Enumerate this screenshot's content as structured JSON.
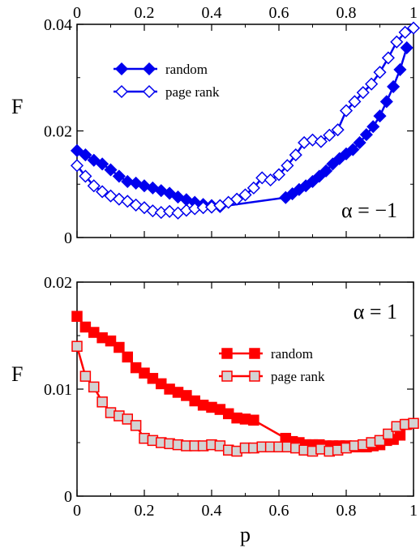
{
  "chart_data": [
    {
      "type": "line",
      "panel": "top",
      "ylabel": "F",
      "annotation": "α = −1",
      "xlim": [
        0,
        1
      ],
      "ylim": [
        0,
        0.04
      ],
      "x_ticks": [
        0,
        0.2,
        0.4,
        0.6,
        0.8,
        1
      ],
      "x_tick_labels": [
        "0",
        "0.2",
        "0.4",
        "0.6",
        "0.8",
        "1"
      ],
      "x_ticks_position": "top",
      "y_ticks": [
        0,
        0.02,
        0.04
      ],
      "y_tick_labels": [
        "0",
        "0.02",
        "0.04"
      ],
      "color": "#0000ee",
      "marker": "diamond",
      "legend_position": "top-left",
      "series": [
        {
          "name": "random",
          "filled": true,
          "x": [
            0.0,
            0.025,
            0.05,
            0.075,
            0.1,
            0.125,
            0.15,
            0.175,
            0.2,
            0.225,
            0.25,
            0.275,
            0.3,
            0.325,
            0.35,
            0.375,
            0.4,
            0.425,
            0.62,
            0.64,
            0.66,
            0.68,
            0.7,
            0.72,
            0.74,
            0.76,
            0.78,
            0.8,
            0.82,
            0.84,
            0.86,
            0.88,
            0.9,
            0.92,
            0.94,
            0.96,
            0.98
          ],
          "y": [
            0.0163,
            0.0155,
            0.0145,
            0.0138,
            0.0127,
            0.0115,
            0.0105,
            0.0102,
            0.0097,
            0.0093,
            0.0088,
            0.0083,
            0.0076,
            0.0071,
            0.0066,
            0.0062,
            0.006,
            0.0058,
            0.0075,
            0.0082,
            0.009,
            0.0097,
            0.0105,
            0.0115,
            0.0125,
            0.0138,
            0.0148,
            0.0157,
            0.0165,
            0.0178,
            0.0193,
            0.0208,
            0.0228,
            0.0255,
            0.0283,
            0.0315,
            0.0356
          ]
        },
        {
          "name": "page rank",
          "filled": false,
          "x": [
            0.0,
            0.025,
            0.05,
            0.075,
            0.1,
            0.125,
            0.15,
            0.175,
            0.2,
            0.225,
            0.25,
            0.275,
            0.3,
            0.325,
            0.35,
            0.375,
            0.4,
            0.425,
            0.45,
            0.475,
            0.5,
            0.525,
            0.55,
            0.575,
            0.6,
            0.625,
            0.65,
            0.675,
            0.7,
            0.725,
            0.75,
            0.775,
            0.8,
            0.825,
            0.85,
            0.875,
            0.9,
            0.925,
            0.95,
            0.975,
            1.0
          ],
          "y": [
            0.0135,
            0.0115,
            0.0097,
            0.0086,
            0.0078,
            0.0072,
            0.0068,
            0.0061,
            0.0056,
            0.005,
            0.0047,
            0.0049,
            0.0046,
            0.0051,
            0.0054,
            0.0056,
            0.0057,
            0.006,
            0.0066,
            0.0072,
            0.008,
            0.0093,
            0.0112,
            0.0108,
            0.0118,
            0.0135,
            0.0155,
            0.0178,
            0.0183,
            0.018,
            0.0192,
            0.0202,
            0.0238,
            0.0255,
            0.0272,
            0.0288,
            0.031,
            0.0337,
            0.0367,
            0.0385,
            0.0393
          ]
        }
      ]
    },
    {
      "type": "line",
      "panel": "bottom",
      "xlabel": "p",
      "ylabel": "F",
      "annotation": "α = 1",
      "xlim": [
        0,
        1
      ],
      "ylim": [
        0,
        0.02
      ],
      "x_ticks": [
        0,
        0.2,
        0.4,
        0.6,
        0.8,
        1
      ],
      "x_tick_labels": [
        "0",
        "0.2",
        "0.4",
        "0.6",
        "0.8",
        "1"
      ],
      "y_ticks": [
        0,
        0.01,
        0.02
      ],
      "y_tick_labels": [
        "0",
        "0.01",
        "0.02"
      ],
      "color": "#ff0000",
      "open_fill": "#d3d3d3",
      "marker": "square",
      "legend_position": "center-right",
      "series": [
        {
          "name": "random",
          "filled": true,
          "x": [
            0.0,
            0.025,
            0.05,
            0.075,
            0.1,
            0.125,
            0.15,
            0.175,
            0.2,
            0.225,
            0.25,
            0.275,
            0.3,
            0.325,
            0.35,
            0.375,
            0.4,
            0.425,
            0.45,
            0.475,
            0.5,
            0.525,
            0.62,
            0.64,
            0.66,
            0.68,
            0.7,
            0.72,
            0.74,
            0.76,
            0.78,
            0.8,
            0.82,
            0.84,
            0.86,
            0.88,
            0.9,
            0.92,
            0.94,
            0.96,
            0.98
          ],
          "y": [
            0.0168,
            0.0158,
            0.0153,
            0.0148,
            0.0145,
            0.0139,
            0.013,
            0.012,
            0.0115,
            0.011,
            0.0105,
            0.01,
            0.0097,
            0.0094,
            0.0089,
            0.0085,
            0.0083,
            0.0081,
            0.0077,
            0.0073,
            0.0072,
            0.0071,
            0.0054,
            0.0051,
            0.005,
            0.0048,
            0.0048,
            0.0048,
            0.0047,
            0.0047,
            0.0047,
            0.0047,
            0.0046,
            0.0046,
            0.0046,
            0.0047,
            0.0048,
            0.0052,
            0.0053,
            0.0057,
            0.0067
          ]
        },
        {
          "name": "page rank",
          "filled": false,
          "x": [
            0.0,
            0.025,
            0.05,
            0.075,
            0.1,
            0.125,
            0.15,
            0.175,
            0.2,
            0.225,
            0.25,
            0.275,
            0.3,
            0.325,
            0.35,
            0.375,
            0.4,
            0.425,
            0.45,
            0.475,
            0.5,
            0.525,
            0.55,
            0.575,
            0.6,
            0.625,
            0.65,
            0.675,
            0.7,
            0.725,
            0.75,
            0.775,
            0.8,
            0.825,
            0.85,
            0.875,
            0.9,
            0.925,
            0.95,
            0.975,
            1.0
          ],
          "y": [
            0.014,
            0.0112,
            0.0102,
            0.0088,
            0.0078,
            0.0075,
            0.0072,
            0.0066,
            0.0054,
            0.0052,
            0.005,
            0.0049,
            0.0048,
            0.0047,
            0.0047,
            0.0047,
            0.0048,
            0.0047,
            0.0043,
            0.0042,
            0.0045,
            0.0045,
            0.0046,
            0.0046,
            0.0046,
            0.0046,
            0.0045,
            0.0043,
            0.0042,
            0.0044,
            0.0042,
            0.0043,
            0.0045,
            0.0047,
            0.0048,
            0.005,
            0.0052,
            0.0058,
            0.0065,
            0.0067,
            0.0068
          ]
        }
      ]
    }
  ]
}
